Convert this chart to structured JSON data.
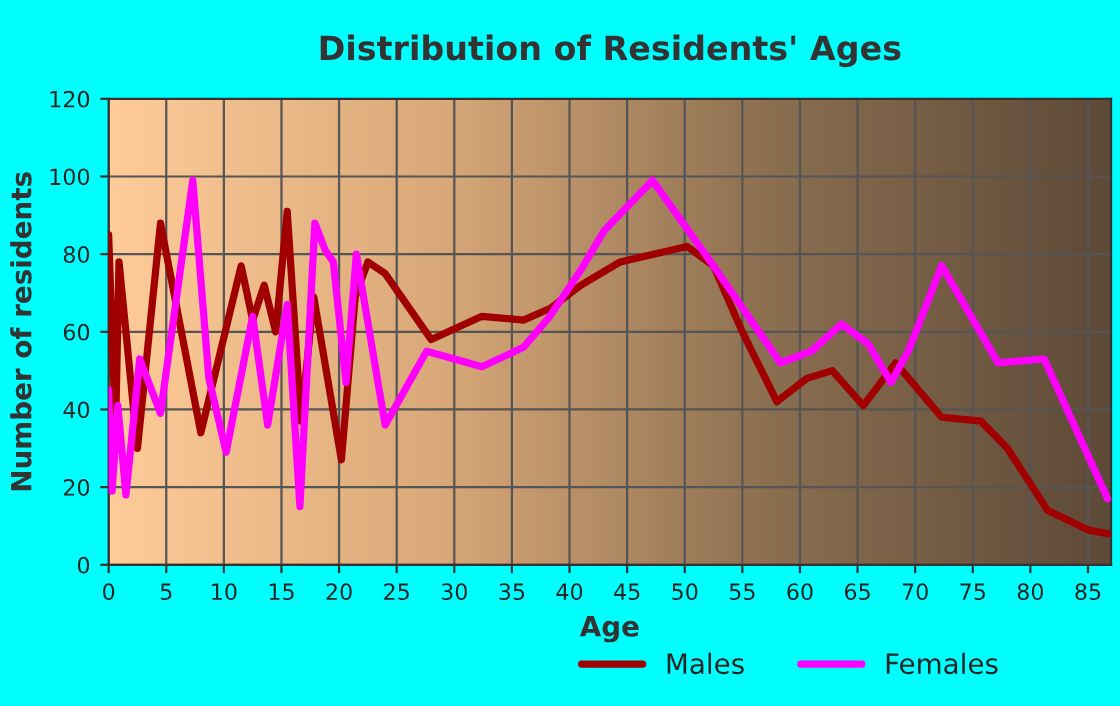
{
  "chart_data": {
    "type": "line",
    "title": "Distribution of Residents' Ages",
    "xlabel": "Age",
    "ylabel": "Number of residents",
    "xlim": [
      0,
      87
    ],
    "xticks": [
      0,
      5,
      10,
      15,
      20,
      25,
      30,
      35,
      40,
      45,
      50,
      55,
      60,
      65,
      70,
      75,
      80,
      85
    ],
    "ylim": [
      0,
      120
    ],
    "yticks": [
      0,
      20,
      40,
      60,
      80,
      100,
      120
    ],
    "grid": true,
    "legend": "bottom",
    "marker": "none",
    "line_style": "solid",
    "series": [
      {
        "name": "Males",
        "color": "#a00000",
        "x": [
          0,
          0.6,
          0.9,
          2.5,
          4.5,
          8,
          11.5,
          12.5,
          13.5,
          14.5,
          15.5,
          16.7,
          17.8,
          20.2,
          21.4,
          22.5,
          24,
          28,
          32.4,
          36,
          38.3,
          41,
          44.4,
          47.3,
          50.2,
          52.5,
          55,
          58,
          60.6,
          62.8,
          65.5,
          68.3,
          72.3,
          75.7,
          78,
          81.5,
          85,
          86.7
        ],
        "values": [
          85,
          34,
          78,
          30,
          88,
          34,
          77,
          63,
          72,
          60,
          91,
          37,
          69,
          27,
          69,
          78,
          75,
          58,
          64,
          63,
          66,
          72,
          78,
          80,
          82,
          77,
          60,
          42,
          48,
          50,
          41,
          52,
          38,
          37,
          30,
          14,
          9,
          8
        ]
      },
      {
        "name": "Females",
        "color": "#ff00ff",
        "x": [
          0,
          0.3,
          0.8,
          1.5,
          2.7,
          4.5,
          7.3,
          8.7,
          10.2,
          12.5,
          13.8,
          15.5,
          16.6,
          17.9,
          18.8,
          19.5,
          20.6,
          21.5,
          24,
          27.6,
          32.4,
          36,
          38.3,
          41,
          43,
          47.2,
          52.5,
          58.3,
          61,
          63.6,
          65.9,
          67.9,
          69.4,
          72.3,
          77.2,
          81.2,
          86.7
        ],
        "values": [
          45,
          19,
          41,
          18,
          53,
          39,
          99,
          48,
          29,
          64,
          36,
          67,
          15,
          88,
          81,
          78,
          47,
          80,
          36,
          55,
          51,
          56,
          64,
          76,
          86,
          99,
          77,
          52,
          55,
          62,
          57,
          47,
          55,
          77,
          52,
          53,
          17
        ]
      }
    ]
  }
}
